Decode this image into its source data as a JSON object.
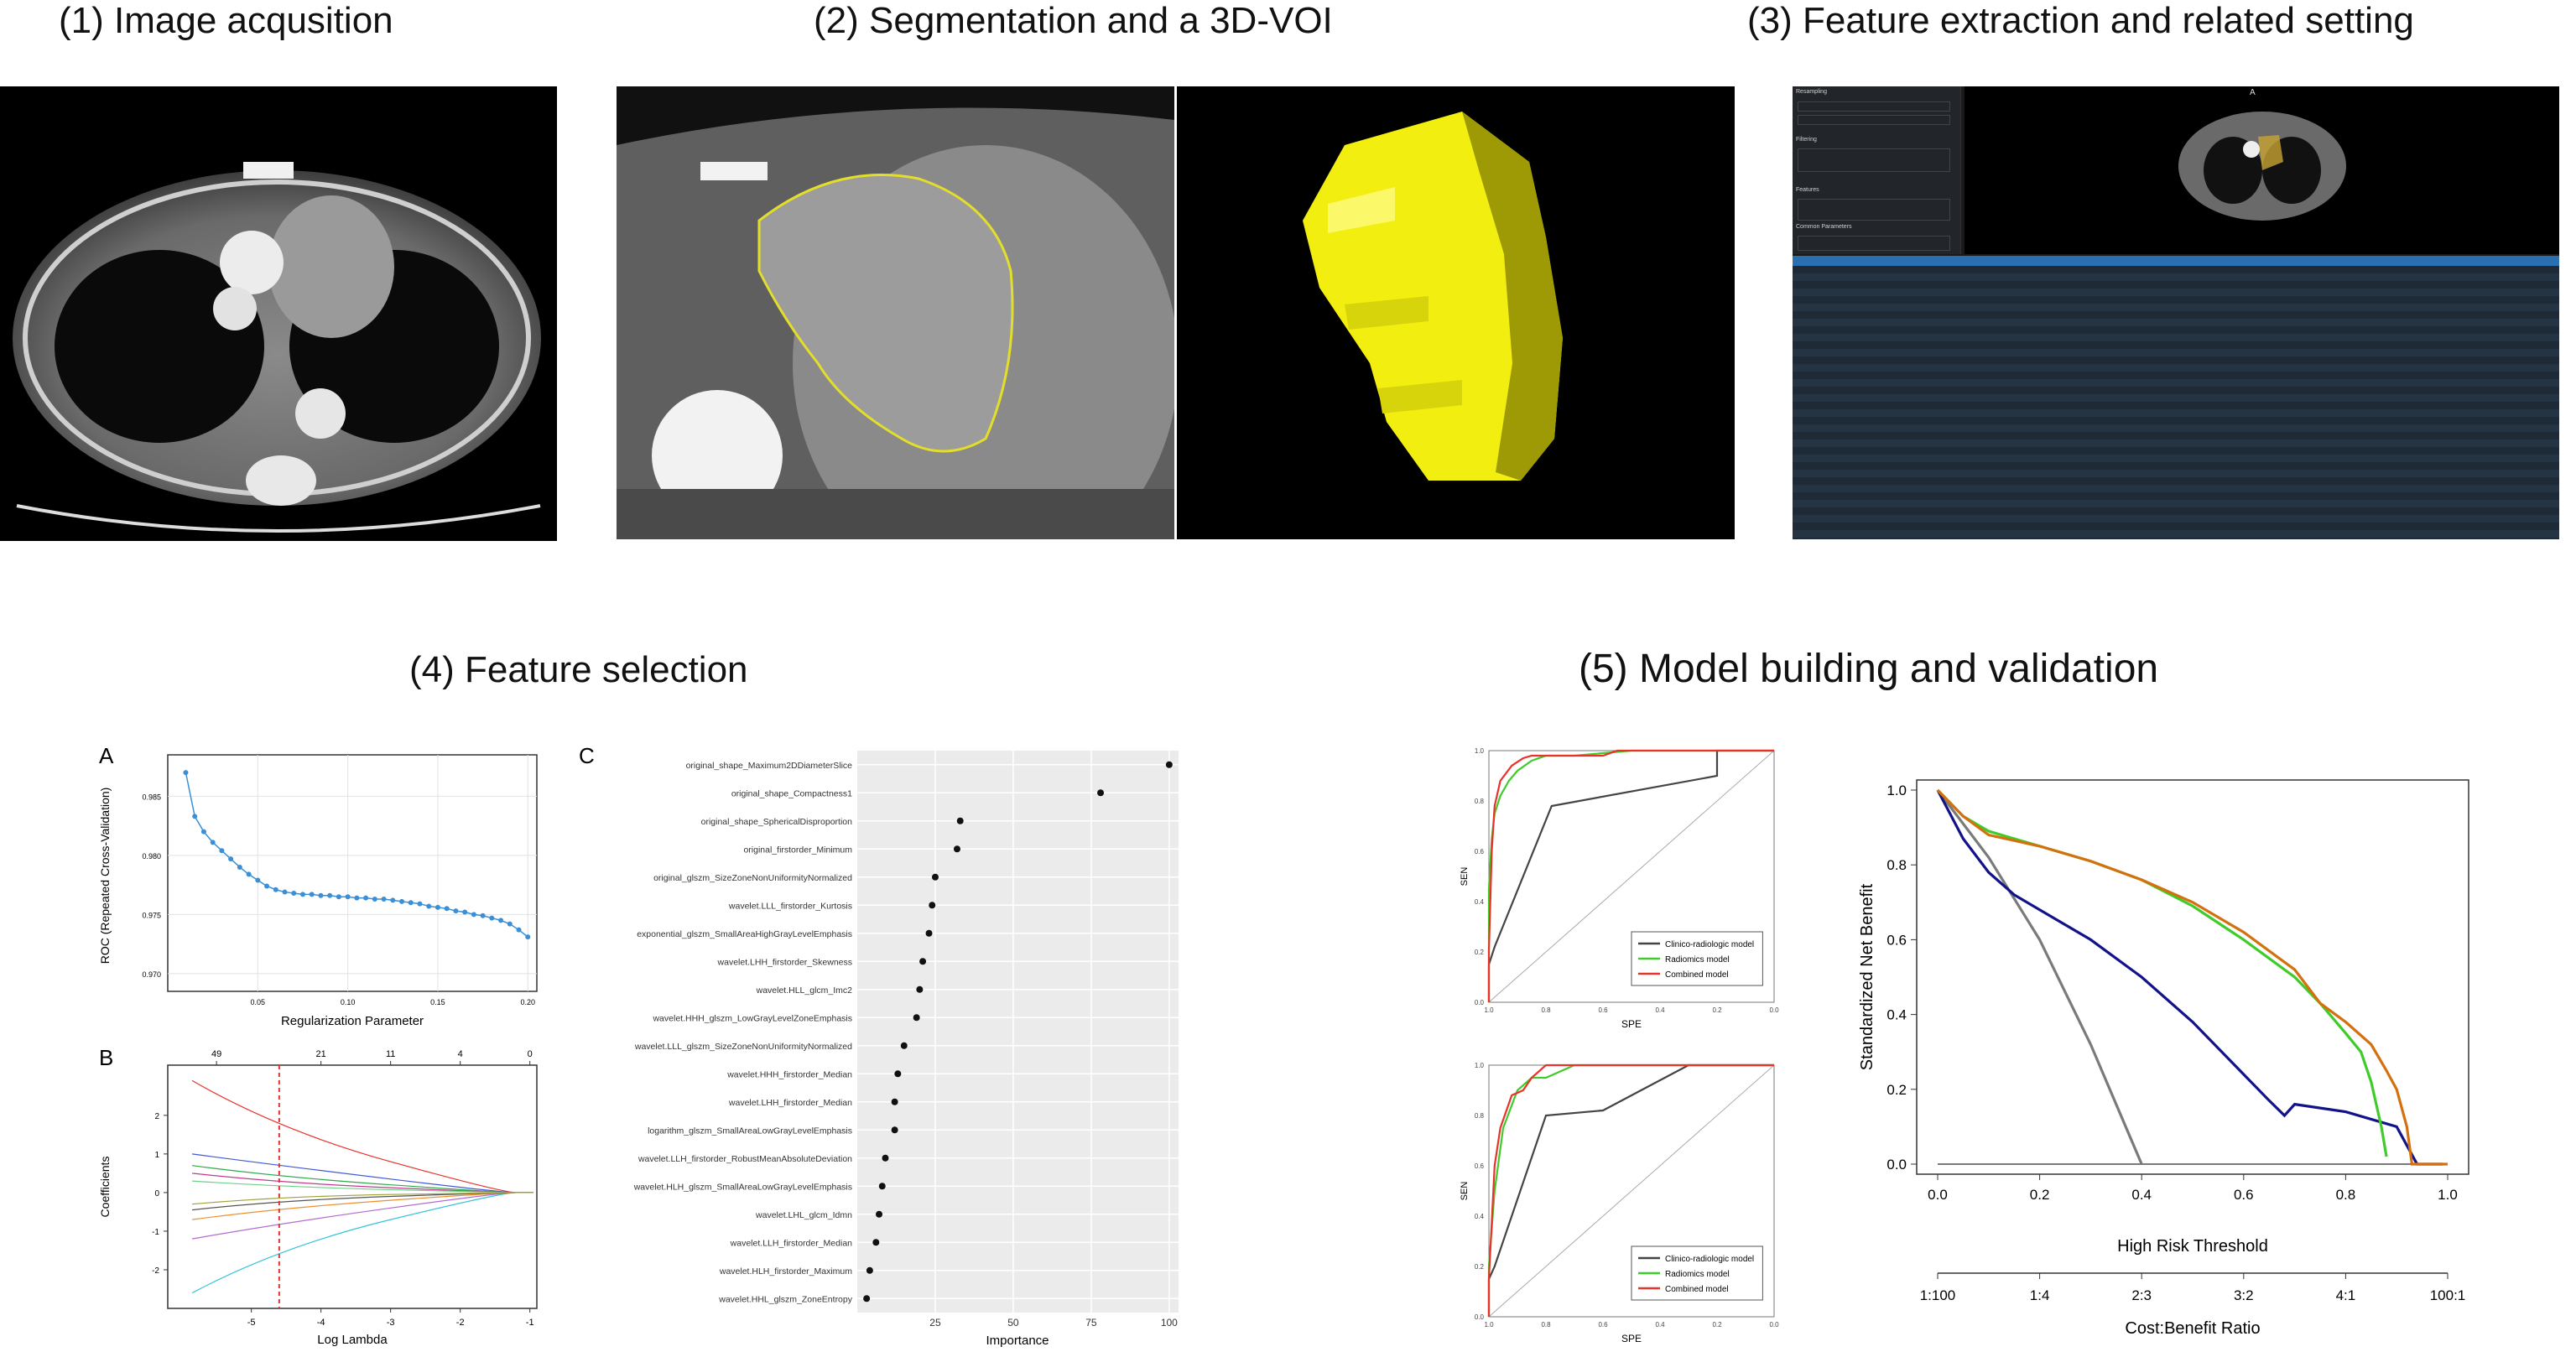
{
  "step_titles": {
    "s1": "(1) Image acqusition",
    "s2": "(2) Segmentation  and a 3D-VOI",
    "s3": "(3) Feature extraction and related setting",
    "s4": "(4) Feature selection",
    "s5": "(5) Model building and validation"
  },
  "colors": {
    "voi_yellow": "#f2ee10",
    "roc_point_blue": "#3b8fd6",
    "clinical": "#444444",
    "radiomics": "#3fcc2a",
    "combined": "#e8332a",
    "dca_blue": "#12128a",
    "dca_orange": "#d4700e",
    "dca_green": "#3fcc2a",
    "dca_grey": "#7a7a7a"
  },
  "step3_panel": {
    "title_block_text": "Feature extraction settings panel with CT preview and feature table",
    "section_labels": [
      "Resampling",
      "Filtering",
      "Features",
      "Common Parameters"
    ],
    "view_label": "A"
  },
  "panelA": {
    "letter": "A",
    "ylabel": "ROC (Repeated Cross-Validation)",
    "xlabel": "Regularization Parameter",
    "xticks": [
      "0.05",
      "0.10",
      "0.15",
      "0.20"
    ],
    "yticks": [
      "0.985",
      "0.980",
      "0.975",
      "0.970"
    ]
  },
  "panelB": {
    "letter": "B",
    "ylabel": "Coefficients",
    "xlabel": "Log Lambda",
    "xticks": [
      "-5",
      "-4",
      "-3",
      "-2",
      "-1"
    ],
    "yticks": [
      "2",
      "1",
      "0",
      "-1",
      "-2"
    ],
    "top_ticks": [
      "49",
      "21",
      "11",
      "4",
      "0"
    ]
  },
  "panelC": {
    "letter": "C",
    "xlabel": "Importance",
    "xticks": [
      "25",
      "50",
      "75",
      "100"
    ]
  },
  "roc_panels": {
    "ylabel": "SEN",
    "xlabel": "SPE",
    "xticks": [
      "1.0",
      "0.8",
      "0.6",
      "0.4",
      "0.2",
      "0.0"
    ],
    "yticks": [
      "1.0",
      "0.8",
      "0.6",
      "0.4",
      "0.2",
      "0.0"
    ],
    "legend": [
      "Clinico-radiologic model",
      "Radiomics model",
      "Combined model"
    ]
  },
  "dca": {
    "ylabel": "Standardized Net Benefit",
    "xlabel": "High Risk Threshold",
    "xticks": [
      "0.0",
      "0.2",
      "0.4",
      "0.6",
      "0.8",
      "1.0"
    ],
    "yticks": [
      "0.0",
      "0.2",
      "0.4",
      "0.6",
      "0.8",
      "1.0"
    ],
    "cost_label": "Cost:Benefit Ratio",
    "cost_ticks": [
      "1:100",
      "1:4",
      "2:3",
      "3:2",
      "4:1",
      "100:1"
    ]
  },
  "chart_data": [
    {
      "type": "scatter",
      "title": "",
      "xlabel": "Regularization Parameter",
      "ylabel": "ROC (Repeated Cross-Validation)",
      "xlim": [
        0.0,
        0.205
      ],
      "ylim": [
        0.9685,
        0.9885
      ],
      "series": [
        {
          "x": [
            0.01,
            0.015,
            0.02,
            0.025,
            0.03,
            0.035,
            0.04,
            0.045,
            0.05,
            0.055,
            0.06,
            0.065,
            0.07,
            0.075,
            0.08,
            0.085,
            0.09,
            0.095,
            0.1,
            0.105,
            0.11,
            0.115,
            0.12,
            0.125,
            0.13,
            0.135,
            0.14,
            0.145,
            0.15,
            0.155,
            0.16,
            0.165,
            0.17,
            0.175,
            0.18,
            0.185,
            0.19,
            0.195,
            0.2
          ],
          "y": [
            0.987,
            0.9833,
            0.982,
            0.9811,
            0.9804,
            0.9797,
            0.979,
            0.9784,
            0.9779,
            0.9774,
            0.9771,
            0.9769,
            0.9768,
            0.9767,
            0.9767,
            0.9766,
            0.9766,
            0.9765,
            0.9765,
            0.9764,
            0.9764,
            0.9763,
            0.9763,
            0.9762,
            0.9761,
            0.976,
            0.9759,
            0.9757,
            0.9756,
            0.9755,
            0.9753,
            0.9752,
            0.975,
            0.9749,
            0.9747,
            0.9745,
            0.9742,
            0.9737,
            0.9731
          ]
        }
      ]
    },
    {
      "type": "line",
      "title": "",
      "xlabel": "Log Lambda",
      "ylabel": "Coefficients",
      "xlim": [
        -6.2,
        -0.9
      ],
      "ylim": [
        -3.0,
        3.3
      ],
      "top_axis": {
        "x": [
          -5.5,
          -4.0,
          -3.0,
          -2.0,
          -1.0
        ],
        "labels": [
          "49",
          "21",
          "11",
          "4",
          "0"
        ]
      },
      "vline": -4.6,
      "series": [
        {
          "color": "#e8332a",
          "y_start": 2.9,
          "y_mid": 1.6,
          "y_end": 0.0
        },
        {
          "color": "#36c4d8",
          "y_start": -2.6,
          "y_mid": -1.4,
          "y_end": 0.0
        },
        {
          "color": "#3e58d6",
          "y_start": 1.0,
          "y_mid": 0.7,
          "y_end": 0.0
        },
        {
          "color": "#b46ad0",
          "y_start": -1.2,
          "y_mid": -0.8,
          "y_end": 0.0
        },
        {
          "color": "#2fa84a",
          "y_start": 0.7,
          "y_mid": 0.4,
          "y_end": 0.0
        },
        {
          "color": "#ee8f2e",
          "y_start": -0.7,
          "y_mid": -0.4,
          "y_end": 0.0
        },
        {
          "color": "#c03c8a",
          "y_start": 0.5,
          "y_mid": 0.25,
          "y_end": 0.0
        },
        {
          "color": "#555555",
          "y_start": -0.45,
          "y_mid": -0.2,
          "y_end": 0.0
        },
        {
          "color": "#6fd08a",
          "y_start": 0.3,
          "y_mid": 0.15,
          "y_end": 0.0
        },
        {
          "color": "#a0a03a",
          "y_start": -0.3,
          "y_mid": -0.1,
          "y_end": 0.0
        }
      ]
    },
    {
      "type": "scatter",
      "title": "",
      "xlabel": "Importance",
      "xlim": [
        0,
        103
      ],
      "categories": [
        "original_shape_Maximum2DDiameterSlice",
        "original_shape_Compactness1",
        "original_shape_SphericalDisproportion",
        "original_firstorder_Minimum",
        "original_glszm_SizeZoneNonUniformityNormalized",
        "wavelet.LLL_firstorder_Kurtosis",
        "exponential_glszm_SmallAreaHighGrayLevelEmphasis",
        "wavelet.LHH_firstorder_Skewness",
        "wavelet.HLL_glcm_Imc2",
        "wavelet.HHH_glszm_LowGrayLevelZoneEmphasis",
        "wavelet.LLL_glszm_SizeZoneNonUniformityNormalized",
        "wavelet.HHH_firstorder_Median",
        "wavelet.LHH_firstorder_Median",
        "logarithm_glszm_SmallAreaLowGrayLevelEmphasis",
        "wavelet.LLH_firstorder_RobustMeanAbsoluteDeviation",
        "wavelet.HLH_glszm_SmallAreaLowGrayLevelEmphasis",
        "wavelet.LHL_glcm_Idmn",
        "wavelet.LLH_firstorder_Median",
        "wavelet.HLH_firstorder_Maximum",
        "wavelet.HHL_glszm_ZoneEntropy"
      ],
      "values": [
        100,
        78,
        33,
        32,
        25,
        24,
        23,
        21,
        20,
        19,
        15,
        13,
        12,
        12,
        9,
        8,
        7,
        6,
        4,
        3
      ]
    },
    {
      "type": "line",
      "title": "",
      "xlabel": "SPE",
      "ylabel": "SEN",
      "x_reversed": true,
      "xlim": [
        1.0,
        0.0
      ],
      "ylim": [
        0.0,
        1.0
      ],
      "series": [
        {
          "name": "Clinico-radiologic model",
          "x": [
            1.0,
            1.0,
            0.98,
            0.78,
            0.2,
            0.2,
            0.0
          ],
          "y": [
            0.0,
            0.15,
            0.22,
            0.78,
            0.9,
            1.0,
            1.0
          ]
        },
        {
          "name": "Radiomics model",
          "x": [
            1.0,
            1.0,
            0.99,
            0.98,
            0.96,
            0.93,
            0.9,
            0.85,
            0.8,
            0.7,
            0.5,
            0.0
          ],
          "y": [
            0.0,
            0.45,
            0.65,
            0.75,
            0.82,
            0.88,
            0.92,
            0.96,
            0.98,
            0.98,
            1.0,
            1.0
          ]
        },
        {
          "name": "Combined model",
          "x": [
            1.0,
            1.0,
            0.99,
            0.98,
            0.96,
            0.92,
            0.88,
            0.85,
            0.8,
            0.6,
            0.55,
            0.0
          ],
          "y": [
            0.0,
            0.2,
            0.6,
            0.78,
            0.88,
            0.94,
            0.97,
            0.98,
            0.98,
            0.98,
            1.0,
            1.0
          ]
        }
      ]
    },
    {
      "type": "line",
      "title": "",
      "xlabel": "SPE",
      "ylabel": "SEN",
      "x_reversed": true,
      "xlim": [
        1.0,
        0.0
      ],
      "ylim": [
        0.0,
        1.0
      ],
      "series": [
        {
          "name": "Clinico-radiologic model",
          "x": [
            1.0,
            1.0,
            0.98,
            0.8,
            0.6,
            0.3,
            0.0
          ],
          "y": [
            0.0,
            0.15,
            0.2,
            0.8,
            0.82,
            1.0,
            1.0
          ]
        },
        {
          "name": "Radiomics model",
          "x": [
            1.0,
            1.0,
            0.98,
            0.95,
            0.9,
            0.85,
            0.8,
            0.7,
            0.0
          ],
          "y": [
            0.0,
            0.2,
            0.5,
            0.75,
            0.9,
            0.95,
            0.95,
            1.0,
            1.0
          ]
        },
        {
          "name": "Combined model",
          "x": [
            1.0,
            1.0,
            0.98,
            0.96,
            0.92,
            0.88,
            0.85,
            0.8,
            0.65,
            0.0
          ],
          "y": [
            0.0,
            0.15,
            0.6,
            0.75,
            0.88,
            0.9,
            0.95,
            1.0,
            1.0,
            1.0
          ]
        }
      ]
    },
    {
      "type": "line",
      "title": "",
      "xlabel": "High Risk Threshold",
      "ylabel": "Standardized Net Benefit",
      "xlim": [
        0.0,
        1.0
      ],
      "ylim": [
        0.0,
        1.0
      ],
      "secondary_x": {
        "label": "Cost:Benefit Ratio",
        "ticks": [
          "1:100",
          "1:4",
          "2:3",
          "3:2",
          "4:1",
          "100:1"
        ]
      },
      "series": [
        {
          "color": "#7a7a7a",
          "x": [
            0.0,
            0.1,
            0.2,
            0.3,
            0.4
          ],
          "y": [
            1.0,
            0.82,
            0.6,
            0.32,
            0.0
          ]
        },
        {
          "color": "#12128a",
          "x": [
            0.0,
            0.05,
            0.1,
            0.15,
            0.2,
            0.3,
            0.4,
            0.5,
            0.6,
            0.65,
            0.68,
            0.7,
            0.8,
            0.9,
            0.92,
            0.94,
            0.99
          ],
          "y": [
            1.0,
            0.87,
            0.78,
            0.72,
            0.68,
            0.6,
            0.5,
            0.38,
            0.24,
            0.17,
            0.13,
            0.16,
            0.14,
            0.1,
            0.05,
            0.0,
            0.0
          ]
        },
        {
          "color": "#3fcc2a",
          "x": [
            0.0,
            0.05,
            0.1,
            0.2,
            0.3,
            0.4,
            0.5,
            0.6,
            0.7,
            0.75,
            0.8,
            0.83,
            0.85,
            0.87,
            0.88
          ],
          "y": [
            1.0,
            0.93,
            0.89,
            0.85,
            0.81,
            0.76,
            0.69,
            0.6,
            0.5,
            0.43,
            0.35,
            0.3,
            0.22,
            0.1,
            0.02
          ]
        },
        {
          "color": "#d4700e",
          "x": [
            0.0,
            0.05,
            0.1,
            0.2,
            0.3,
            0.4,
            0.5,
            0.6,
            0.7,
            0.75,
            0.8,
            0.85,
            0.88,
            0.9,
            0.92,
            0.93,
            0.95,
            1.0
          ],
          "y": [
            1.0,
            0.93,
            0.88,
            0.85,
            0.81,
            0.76,
            0.7,
            0.62,
            0.52,
            0.43,
            0.38,
            0.32,
            0.25,
            0.2,
            0.1,
            0.0,
            0.0,
            0.0
          ]
        },
        {
          "color": "#7a7a7a",
          "x": [
            0.0,
            1.0
          ],
          "y": [
            0.0,
            0.0
          ]
        }
      ]
    }
  ]
}
